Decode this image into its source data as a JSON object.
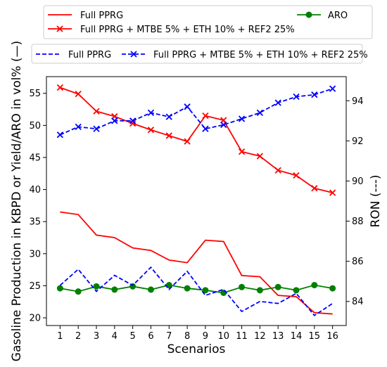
{
  "chart_data": {
    "type": "line",
    "xlabel": "Scenarios",
    "ylabel_left": "Gasoline Production in KBPD or Yield/ARO in vol% (—)",
    "ylabel_right": "RON (---)",
    "x": [
      1,
      2,
      3,
      4,
      5,
      6,
      7,
      8,
      9,
      10,
      11,
      12,
      13,
      14,
      15,
      16
    ],
    "xlim": [
      0.25,
      16.75
    ],
    "ylim_left": [
      18.8,
      57.6
    ],
    "ylim_right": [
      82.8,
      95.2
    ],
    "yticks_left": [
      20,
      25,
      30,
      35,
      40,
      45,
      50,
      55
    ],
    "yticks_right": [
      84,
      86,
      88,
      90,
      92,
      94
    ],
    "series": [
      {
        "name": "Full PPRG",
        "axis": "left",
        "color": "#ff0000",
        "style": "solid",
        "marker": "none",
        "values": [
          36.5,
          36.1,
          32.9,
          32.5,
          30.9,
          30.5,
          29.0,
          28.6,
          32.1,
          31.9,
          26.6,
          26.4,
          23.5,
          23.3,
          20.8,
          20.6
        ]
      },
      {
        "name": "Full PPRG + MTBE 5% + ETH 10% + REF2 25%",
        "axis": "left",
        "color": "#ff0000",
        "style": "solid",
        "marker": "x",
        "values": [
          55.9,
          54.9,
          52.2,
          51.4,
          50.3,
          49.3,
          48.4,
          47.5,
          51.5,
          50.8,
          45.9,
          45.2,
          43.0,
          42.2,
          40.2,
          39.5
        ]
      },
      {
        "name": "ARO",
        "axis": "left",
        "color": "#008000",
        "style": "solid",
        "marker": "circle",
        "values": [
          24.6,
          24.1,
          24.9,
          24.4,
          24.9,
          24.4,
          25.1,
          24.6,
          24.3,
          23.9,
          24.8,
          24.3,
          24.8,
          24.3,
          25.1,
          24.6
        ]
      },
      {
        "name": "Full PPRG",
        "axis": "right",
        "color": "#0000ff",
        "style": "dashed",
        "marker": "none",
        "values": [
          84.8,
          85.6,
          84.5,
          85.3,
          84.8,
          85.7,
          84.6,
          85.5,
          84.3,
          84.6,
          83.5,
          84.0,
          83.9,
          84.4,
          83.3,
          83.9
        ]
      },
      {
        "name": "Full PPRG + MTBE 5% + ETH 10% + REF2 25%",
        "axis": "right",
        "color": "#0000ff",
        "style": "dashed",
        "marker": "x",
        "values": [
          92.3,
          92.7,
          92.6,
          93.0,
          93.0,
          93.4,
          93.2,
          93.7,
          92.6,
          92.8,
          93.1,
          93.4,
          93.9,
          94.2,
          94.3,
          94.6
        ]
      }
    ],
    "legend_placement": "top, outside plot area"
  }
}
